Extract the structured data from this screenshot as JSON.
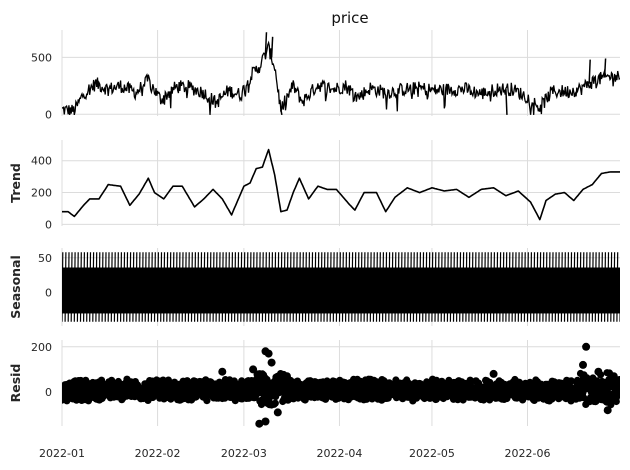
{
  "chart_data": {
    "type": "line",
    "title": "price",
    "x_axis": {
      "start": "2022-01-01",
      "end": "2022-06-30",
      "tick_labels": [
        "2022-01",
        "2022-02",
        "2022-03",
        "2022-04",
        "2022-05",
        "2022-06"
      ]
    },
    "grid": true,
    "panels": [
      {
        "id": "observed",
        "ylabel": "",
        "ylim": [
          -15,
          740
        ],
        "yticks": [
          0,
          500
        ],
        "style": "line",
        "color": "#000000",
        "key_points": [
          [
            "2022-01-01",
            40
          ],
          [
            "2022-01-05",
            30
          ],
          [
            "2022-01-08",
            180
          ],
          [
            "2022-01-12",
            270
          ],
          [
            "2022-01-16",
            220
          ],
          [
            "2022-01-20",
            250
          ],
          [
            "2022-01-25",
            190
          ],
          [
            "2022-01-29",
            300
          ],
          [
            "2022-02-02",
            130
          ],
          [
            "2022-02-07",
            240
          ],
          [
            "2022-02-11",
            240
          ],
          [
            "2022-02-16",
            190
          ],
          [
            "2022-02-20",
            100
          ],
          [
            "2022-02-24",
            210
          ],
          [
            "2022-02-28",
            170
          ],
          [
            "2022-03-03",
            330
          ],
          [
            "2022-03-06",
            420
          ],
          [
            "2022-03-09",
            580
          ],
          [
            "2022-03-11",
            420
          ],
          [
            "2022-03-13",
            40
          ],
          [
            "2022-03-17",
            250
          ],
          [
            "2022-03-20",
            110
          ],
          [
            "2022-03-25",
            260
          ],
          [
            "2022-03-30",
            220
          ],
          [
            "2022-04-03",
            250
          ],
          [
            "2022-04-07",
            150
          ],
          [
            "2022-04-11",
            230
          ],
          [
            "2022-04-16",
            190
          ],
          [
            "2022-04-22",
            220
          ],
          [
            "2022-04-27",
            230
          ],
          [
            "2022-05-02",
            210
          ],
          [
            "2022-05-07",
            220
          ],
          [
            "2022-05-12",
            220
          ],
          [
            "2022-05-17",
            180
          ],
          [
            "2022-05-22",
            220
          ],
          [
            "2022-05-27",
            220
          ],
          [
            "2022-06-01",
            150
          ],
          [
            "2022-06-05",
            60
          ],
          [
            "2022-06-09",
            200
          ],
          [
            "2022-06-14",
            200
          ],
          [
            "2022-06-18",
            220
          ],
          [
            "2022-06-23",
            300
          ],
          [
            "2022-06-27",
            330
          ],
          [
            "2022-06-30",
            330
          ]
        ],
        "spikes": [
          [
            "2022-03-08",
            720
          ],
          [
            "2022-03-10",
            680
          ],
          [
            "2022-06-21",
            480
          ],
          [
            "2022-06-26",
            490
          ],
          [
            "2022-03-13",
            -5
          ],
          [
            "2022-05-25",
            -5
          ]
        ]
      },
      {
        "id": "trend",
        "ylabel": "Trend",
        "ylim": [
          -10,
          530
        ],
        "yticks": [
          0,
          200,
          400
        ],
        "style": "line",
        "color": "#000000",
        "key_points": [
          [
            "2022-01-01",
            80
          ],
          [
            "2022-01-03",
            80
          ],
          [
            "2022-01-05",
            50
          ],
          [
            "2022-01-08",
            120
          ],
          [
            "2022-01-10",
            160
          ],
          [
            "2022-01-13",
            160
          ],
          [
            "2022-01-16",
            250
          ],
          [
            "2022-01-20",
            240
          ],
          [
            "2022-01-23",
            120
          ],
          [
            "2022-01-26",
            190
          ],
          [
            "2022-01-29",
            290
          ],
          [
            "2022-01-31",
            200
          ],
          [
            "2022-02-03",
            160
          ],
          [
            "2022-02-06",
            240
          ],
          [
            "2022-02-09",
            240
          ],
          [
            "2022-02-13",
            110
          ],
          [
            "2022-02-16",
            160
          ],
          [
            "2022-02-19",
            220
          ],
          [
            "2022-02-22",
            160
          ],
          [
            "2022-02-25",
            60
          ],
          [
            "2022-02-27",
            150
          ],
          [
            "2022-03-01",
            240
          ],
          [
            "2022-03-03",
            260
          ],
          [
            "2022-03-05",
            350
          ],
          [
            "2022-03-07",
            360
          ],
          [
            "2022-03-09",
            470
          ],
          [
            "2022-03-11",
            310
          ],
          [
            "2022-03-13",
            80
          ],
          [
            "2022-03-15",
            90
          ],
          [
            "2022-03-17",
            200
          ],
          [
            "2022-03-19",
            290
          ],
          [
            "2022-03-22",
            160
          ],
          [
            "2022-03-25",
            240
          ],
          [
            "2022-03-28",
            220
          ],
          [
            "2022-03-31",
            220
          ],
          [
            "2022-04-04",
            130
          ],
          [
            "2022-04-06",
            90
          ],
          [
            "2022-04-09",
            200
          ],
          [
            "2022-04-13",
            200
          ],
          [
            "2022-04-16",
            80
          ],
          [
            "2022-04-19",
            170
          ],
          [
            "2022-04-23",
            230
          ],
          [
            "2022-04-27",
            200
          ],
          [
            "2022-05-01",
            230
          ],
          [
            "2022-05-05",
            210
          ],
          [
            "2022-05-09",
            220
          ],
          [
            "2022-05-13",
            170
          ],
          [
            "2022-05-17",
            220
          ],
          [
            "2022-05-21",
            230
          ],
          [
            "2022-05-25",
            180
          ],
          [
            "2022-05-29",
            210
          ],
          [
            "2022-06-02",
            140
          ],
          [
            "2022-06-05",
            30
          ],
          [
            "2022-06-07",
            150
          ],
          [
            "2022-06-10",
            190
          ],
          [
            "2022-06-13",
            200
          ],
          [
            "2022-06-16",
            150
          ],
          [
            "2022-06-19",
            220
          ],
          [
            "2022-06-22",
            250
          ],
          [
            "2022-06-25",
            320
          ],
          [
            "2022-06-28",
            330
          ],
          [
            "2022-06-30",
            330
          ]
        ]
      },
      {
        "id": "seasonal",
        "ylabel": "Seasonal",
        "ylim": [
          -48,
          64
        ],
        "yticks": [
          0,
          50
        ],
        "style": "oscillation",
        "color": "#000000",
        "min": -42,
        "max": 58,
        "period_days": 1
      },
      {
        "id": "resid",
        "ylabel": "Resid",
        "ylim": [
          -150,
          230
        ],
        "yticks": [
          0,
          200
        ],
        "style": "scatter",
        "color": "#000000",
        "band_range": [
          -40,
          60
        ],
        "outliers": [
          [
            "2022-03-08",
            180
          ],
          [
            "2022-03-09",
            170
          ],
          [
            "2022-03-10",
            130
          ],
          [
            "2022-03-06",
            -140
          ],
          [
            "2022-03-08",
            -130
          ],
          [
            "2022-03-12",
            -90
          ],
          [
            "2022-03-15",
            70
          ],
          [
            "2022-02-22",
            90
          ],
          [
            "2022-05-21",
            80
          ],
          [
            "2022-06-20",
            200
          ],
          [
            "2022-06-19",
            120
          ],
          [
            "2022-06-24",
            90
          ],
          [
            "2022-06-27",
            -80
          ],
          [
            "2022-06-29",
            70
          ],
          [
            "2022-03-04",
            100
          ]
        ]
      }
    ]
  }
}
